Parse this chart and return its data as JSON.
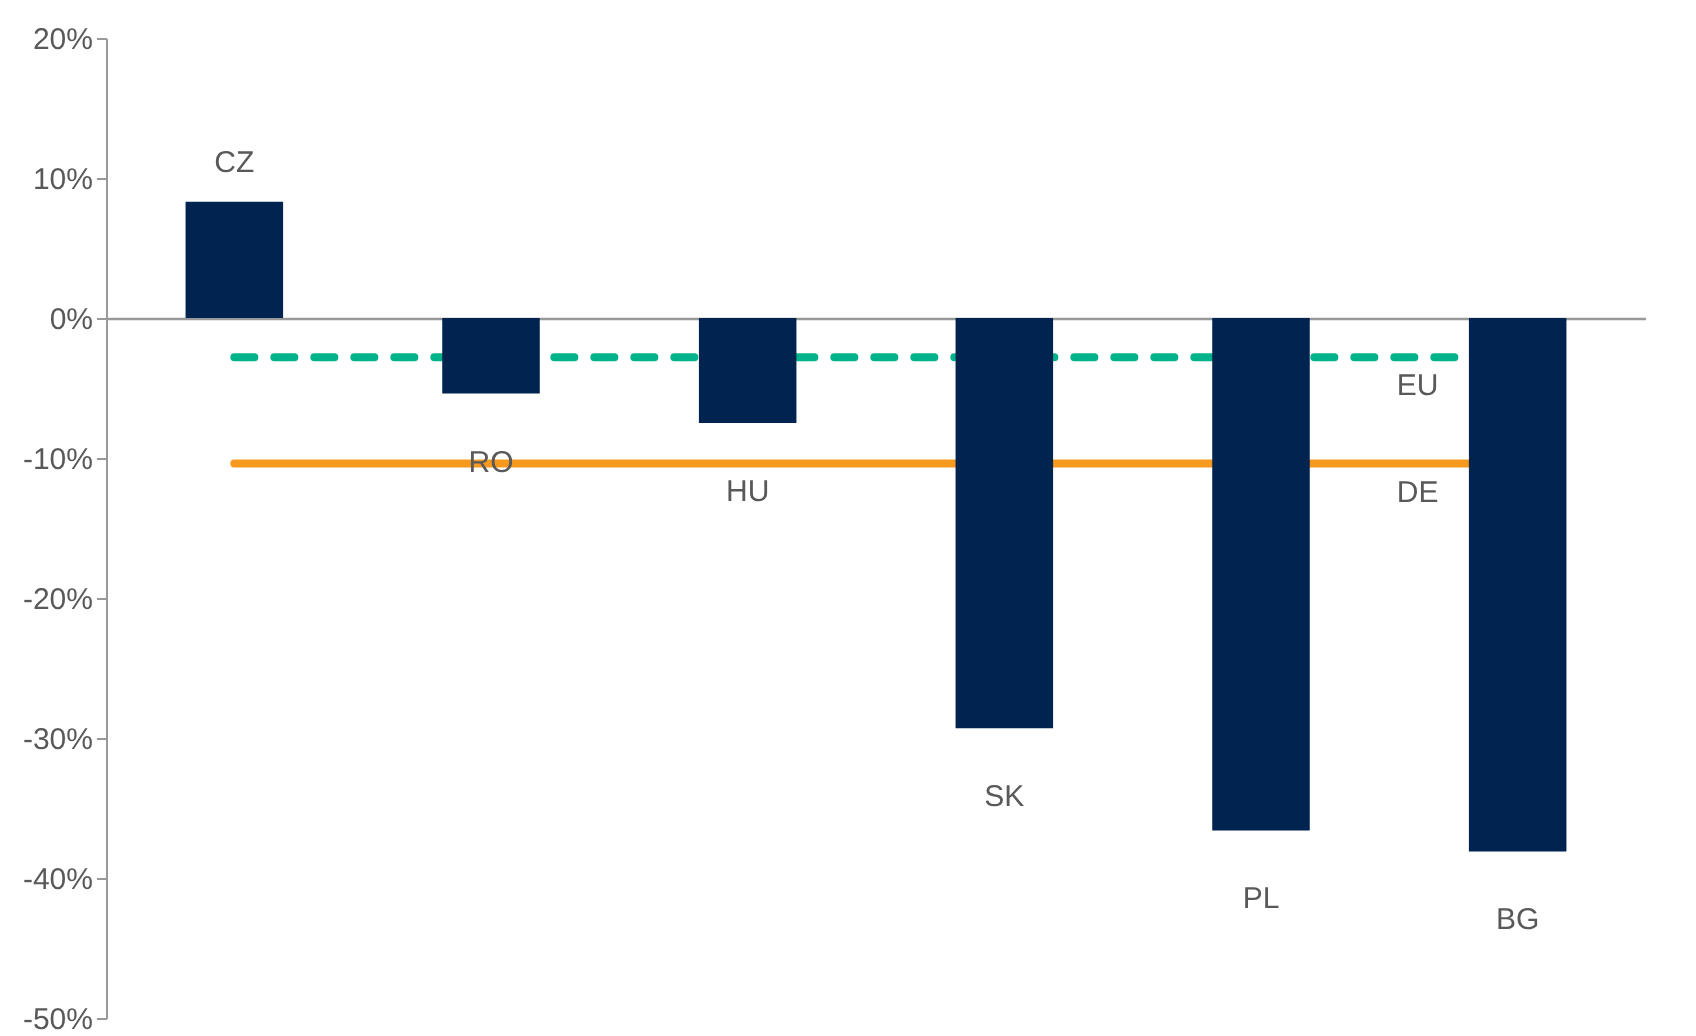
{
  "chart_data": {
    "type": "bar",
    "categories": [
      "CZ",
      "RO",
      "HU",
      "SK",
      "PL",
      "BG"
    ],
    "series": [
      {
        "color": "#00234f",
        "values": [
          8.3,
          -5.4,
          -7.5,
          -29.3,
          -36.6,
          -38.1
        ]
      }
    ],
    "ylim": [
      -50,
      20
    ],
    "yticks": [
      {
        "value": -50,
        "label": "-50%"
      },
      {
        "value": -40,
        "label": "-40%"
      },
      {
        "value": -30,
        "label": "-30%"
      },
      {
        "value": -20,
        "label": "-20%"
      },
      {
        "value": -10,
        "label": "-10%"
      },
      {
        "value": 0,
        "label": "0%"
      },
      {
        "value": 10,
        "label": "10%"
      },
      {
        "value": 20,
        "label": "20%"
      }
    ],
    "ref_lines": [
      {
        "axis": "y",
        "value": -2.8,
        "label": "EU",
        "color": "#00b38a",
        "line_style": "dashed"
      },
      {
        "axis": "y",
        "value": -10.4,
        "label": "DE",
        "color": "#f7991f",
        "line_style": "solid"
      }
    ],
    "tick_labels": "y"
  }
}
